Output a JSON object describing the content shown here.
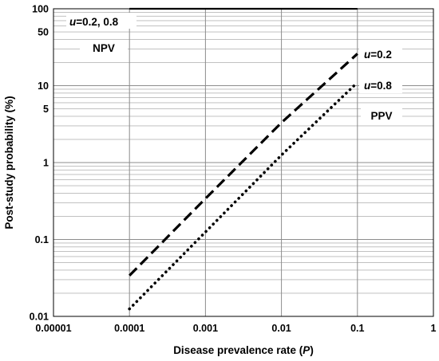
{
  "chart_data": {
    "type": "line",
    "xlabel": "Disease prevalence rate (P)",
    "xlabel_main": "Disease prevalence rate (",
    "xlabel_var": "P",
    "xlabel_end": ")",
    "ylabel": "Post-study probability (%)",
    "x_scale": "log",
    "y_scale": "log",
    "xlim": [
      1e-05,
      1
    ],
    "ylim": [
      0.01,
      100
    ],
    "x_ticks": [
      1e-05,
      0.0001,
      0.001,
      0.01,
      0.1,
      1
    ],
    "x_tick_labels": [
      "0.00001",
      "0.0001",
      "0.001",
      "0.01",
      "0.1",
      "1"
    ],
    "y_ticks": [
      0.01,
      0.1,
      1,
      5,
      10,
      50,
      100
    ],
    "y_tick_labels": [
      "0.01",
      "0.1",
      "1",
      "5",
      "10",
      "50",
      "100"
    ],
    "grid": "on",
    "series": [
      {
        "name": "u=0.2 (PPV)",
        "style": "dashed",
        "x": [
          0.0001,
          0.001,
          0.01,
          0.1
        ],
        "y": [
          0.034,
          0.34,
          3.3,
          26
        ]
      },
      {
        "name": "u=0.8 (PPV)",
        "style": "dotted",
        "x": [
          0.0001,
          0.001,
          0.01,
          0.1
        ],
        "y": [
          0.0125,
          0.125,
          1.25,
          11
        ]
      },
      {
        "name": "u=0.2, 0.8 (NPV)",
        "style": "solid",
        "x": [
          0.0001,
          0.001,
          0.01,
          0.1
        ],
        "y": [
          100,
          100,
          100,
          99.9
        ]
      }
    ],
    "annotations": [
      {
        "id": "npv_u",
        "var": "u",
        "text": "=0.2, 0.8"
      },
      {
        "id": "npv",
        "text": "NPV"
      },
      {
        "id": "u02",
        "var": "u",
        "text": "=0.2"
      },
      {
        "id": "u08",
        "var": "u",
        "text": "=0.8"
      },
      {
        "id": "ppv",
        "text": "PPV"
      }
    ]
  }
}
